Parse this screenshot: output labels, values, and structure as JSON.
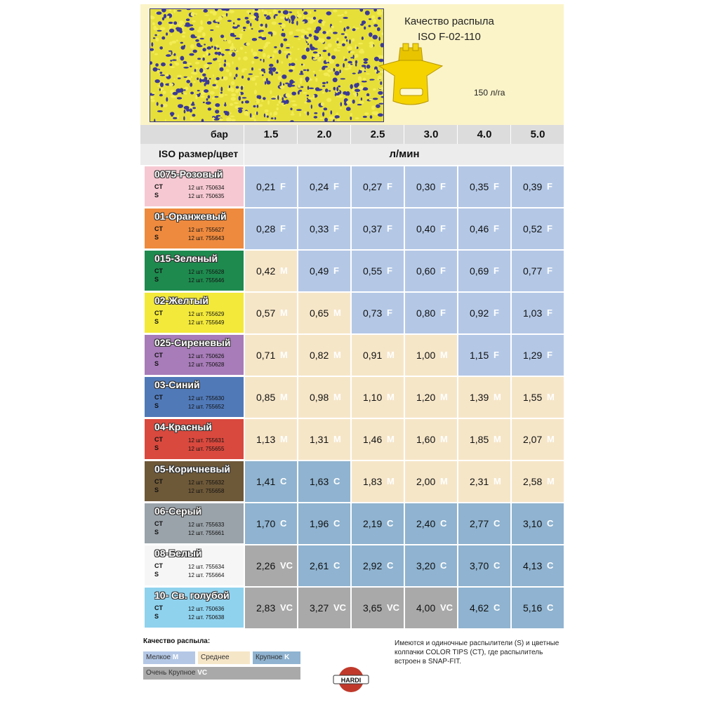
{
  "header": {
    "title_line1": "Качество распыла",
    "title_line2": "ISO F-02-110",
    "rate": "150 л/га"
  },
  "table": {
    "bar_label": "бар",
    "iso_label": "ISO размер/цвет",
    "unit_label": "л/мин",
    "pressures": [
      "1.5",
      "2.0",
      "2.5",
      "3.0",
      "4.0",
      "5.0"
    ],
    "rows": [
      {
        "name": "0075-Розовый",
        "color": "#f6c9d2",
        "ct": "CT",
        "s": "S",
        "ct_code": "12 шт. 750634",
        "s_code": "12 шт. 750635",
        "cells": [
          [
            "0,21",
            "F"
          ],
          [
            "0,24",
            "F"
          ],
          [
            "0,27",
            "F"
          ],
          [
            "0,30",
            "F"
          ],
          [
            "0,35",
            "F"
          ],
          [
            "0,39",
            "F"
          ]
        ]
      },
      {
        "name": "01-Оранжевый",
        "color": "#ee8a3e",
        "ct": "CT",
        "s": "S",
        "ct_code": "12 шт. 755627",
        "s_code": "12 шт. 755643",
        "cells": [
          [
            "0,28",
            "F"
          ],
          [
            "0,33",
            "F"
          ],
          [
            "0,37",
            "F"
          ],
          [
            "0,40",
            "F"
          ],
          [
            "0,46",
            "F"
          ],
          [
            "0,52",
            "F"
          ]
        ]
      },
      {
        "name": "015-Зеленый",
        "color": "#1e8a4e",
        "ct": "CT",
        "s": "S",
        "ct_code": "12 шт. 755628",
        "s_code": "12 шт. 755646",
        "cells": [
          [
            "0,42",
            "M"
          ],
          [
            "0,49",
            "F"
          ],
          [
            "0,55",
            "F"
          ],
          [
            "0,60",
            "F"
          ],
          [
            "0,69",
            "F"
          ],
          [
            "0,77",
            "F"
          ]
        ]
      },
      {
        "name": "02-Желтый",
        "color": "#f3e93a",
        "ct": "CT",
        "s": "S",
        "ct_code": "12 шт. 755629",
        "s_code": "12 шт. 755649",
        "cells": [
          [
            "0,57",
            "M"
          ],
          [
            "0,65",
            "M"
          ],
          [
            "0,73",
            "F"
          ],
          [
            "0,80",
            "F"
          ],
          [
            "0,92",
            "F"
          ],
          [
            "1,03",
            "F"
          ]
        ]
      },
      {
        "name": "025-Сиреневый",
        "color": "#a77cb8",
        "ct": "CT",
        "s": "S",
        "ct_code": "12 шт. 750626",
        "s_code": "12 шт. 750628",
        "cells": [
          [
            "0,71",
            "M"
          ],
          [
            "0,82",
            "M"
          ],
          [
            "0,91",
            "M"
          ],
          [
            "1,00",
            "M"
          ],
          [
            "1,15",
            "F"
          ],
          [
            "1,29",
            "F"
          ]
        ]
      },
      {
        "name": "03-Синий",
        "color": "#5079b8",
        "ct": "CT",
        "s": "S",
        "ct_code": "12 шт. 755630",
        "s_code": "12 шт. 755652",
        "cells": [
          [
            "0,85",
            "M"
          ],
          [
            "0,98",
            "M"
          ],
          [
            "1,10",
            "M"
          ],
          [
            "1,20",
            "M"
          ],
          [
            "1,39",
            "M"
          ],
          [
            "1,55",
            "M"
          ]
        ]
      },
      {
        "name": "04-Красный",
        "color": "#d9493e",
        "ct": "CT",
        "s": "S",
        "ct_code": "12 шт. 755631",
        "s_code": "12 шт. 755655",
        "cells": [
          [
            "1,13",
            "M"
          ],
          [
            "1,31",
            "M"
          ],
          [
            "1,46",
            "M"
          ],
          [
            "1,60",
            "M"
          ],
          [
            "1,85",
            "M"
          ],
          [
            "2,07",
            "M"
          ]
        ]
      },
      {
        "name": "05-Коричневый",
        "color": "#6d5838",
        "ct": "CT",
        "s": "S",
        "ct_code": "12 шт. 755632",
        "s_code": "12 шт. 755658",
        "cells": [
          [
            "1,41",
            "C"
          ],
          [
            "1,63",
            "C"
          ],
          [
            "1,83",
            "M"
          ],
          [
            "2,00",
            "M"
          ],
          [
            "2,31",
            "M"
          ],
          [
            "2,58",
            "M"
          ]
        ]
      },
      {
        "name": "06-Серый",
        "color": "#9aa3aa",
        "ct": "CT",
        "s": "S",
        "ct_code": "12 шт. 755633",
        "s_code": "12 шт. 755661",
        "cells": [
          [
            "1,70",
            "C"
          ],
          [
            "1,96",
            "C"
          ],
          [
            "2,19",
            "C"
          ],
          [
            "2,40",
            "C"
          ],
          [
            "2,77",
            "C"
          ],
          [
            "3,10",
            "C"
          ]
        ]
      },
      {
        "name": "08-Белый",
        "color": "#f6f6f6",
        "ct": "CT",
        "s": "S",
        "ct_code": "12 шт. 755634",
        "s_code": "12 шт. 755664",
        "cells": [
          [
            "2,26",
            "VC"
          ],
          [
            "2,61",
            "C"
          ],
          [
            "2,92",
            "C"
          ],
          [
            "3,20",
            "C"
          ],
          [
            "3,70",
            "C"
          ],
          [
            "4,13",
            "C"
          ]
        ]
      },
      {
        "name": "10- Св. голубой",
        "color": "#8fd2ee",
        "ct": "CT",
        "s": "S",
        "ct_code": "12 шт. 750636",
        "s_code": "12 шт. 750638",
        "cells": [
          [
            "2,83",
            "VC"
          ],
          [
            "3,27",
            "VC"
          ],
          [
            "3,65",
            "VC"
          ],
          [
            "4,00",
            "VC"
          ],
          [
            "4,62",
            "C"
          ],
          [
            "5,16",
            "C"
          ]
        ]
      }
    ]
  },
  "quality_colors": {
    "F": "#b4c8e6",
    "M": "#f6e6c8",
    "C": "#8fb3d0",
    "VC": "#a9a9a9"
  },
  "legend": {
    "title": "Качество распыла:",
    "fine": "Мелкое",
    "fine_code": "M",
    "medium": "Среднее",
    "coarse": "Крупное",
    "coarse_code": "K",
    "very_coarse": "Очень Крупное",
    "very_coarse_code": "VC"
  },
  "note": "Имеются и одиночные распылители (S) и цветные колпачки COLOR TIPS (CT), где распылитель встроен в SNAP-FIT.",
  "logo_text": "HARDI"
}
